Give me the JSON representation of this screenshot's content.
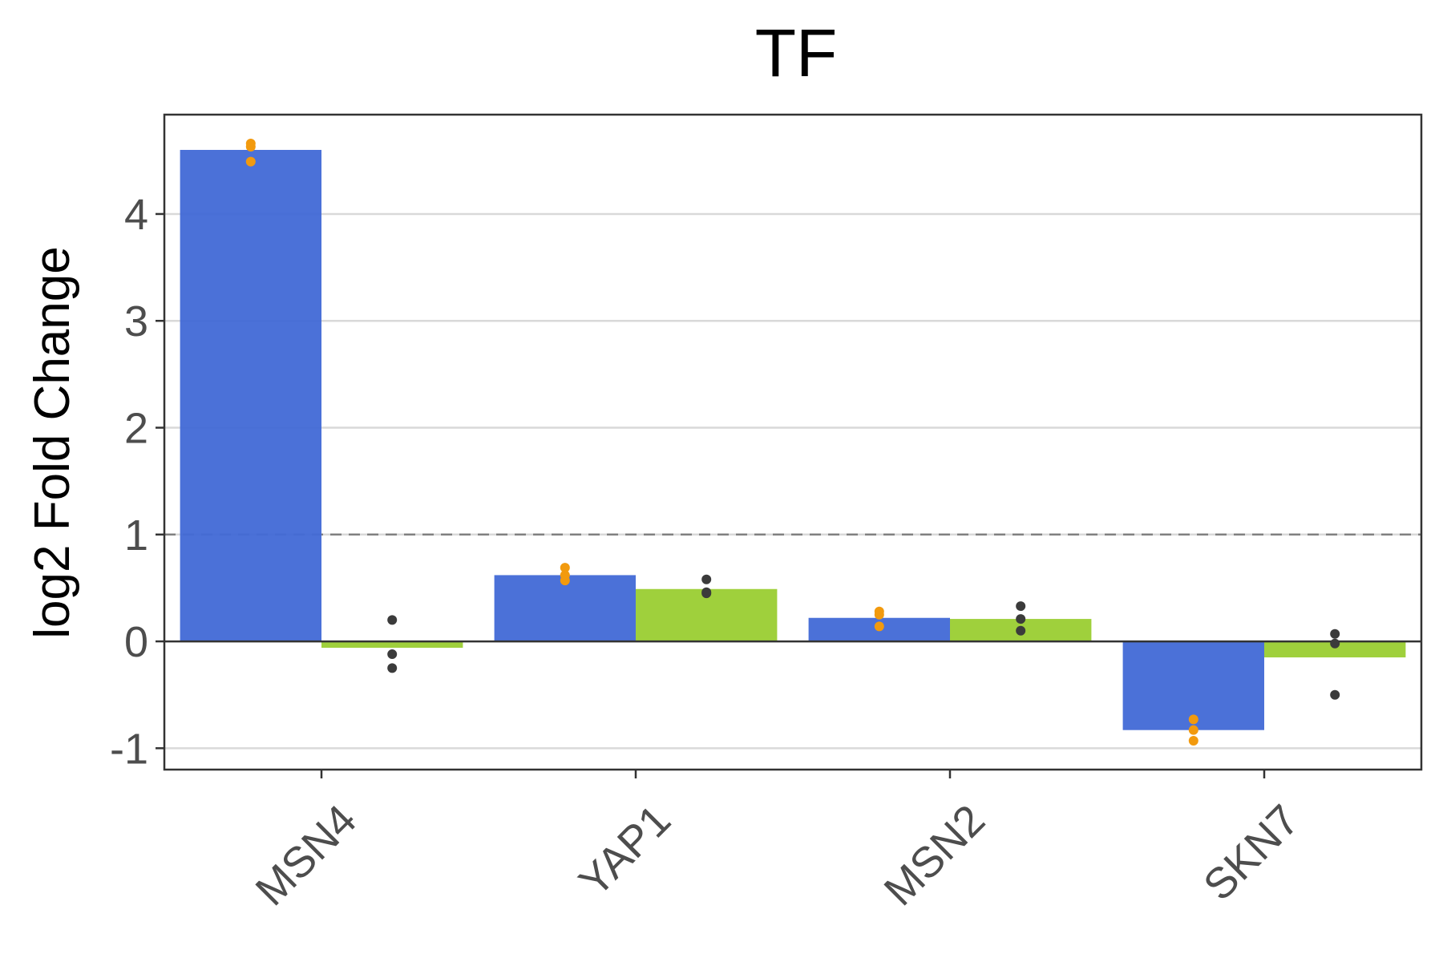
{
  "chart_data": {
    "type": "bar",
    "title": "TF",
    "xlabel": "",
    "ylabel": "log2 Fold Change",
    "categories": [
      "MSN4",
      "YAP1",
      "MSN2",
      "SKN7"
    ],
    "ylim": [
      -1.2,
      4.93
    ],
    "yticks": [
      -1,
      0,
      1,
      2,
      3,
      4
    ],
    "ytick_labels": [
      "-1",
      "0",
      "1",
      "2",
      "3",
      "4"
    ],
    "reference_line": {
      "y": 1,
      "style": "dashed",
      "color": "#808080"
    },
    "zero_line": {
      "y": 0,
      "color": "#333333"
    },
    "grid": "horizontal",
    "legend": "none",
    "series": [
      {
        "color": "#4169d6",
        "point_color": "#f29a0e",
        "values": [
          4.6,
          0.62,
          0.22,
          -0.83
        ],
        "points": [
          [
            4.49,
            4.63,
            4.66
          ],
          [
            0.57,
            0.62,
            0.69
          ],
          [
            0.14,
            0.25,
            0.28
          ],
          [
            -0.93,
            -0.83,
            -0.73
          ]
        ]
      },
      {
        "color": "#9acd32",
        "point_color": "#3b3b3b",
        "values": [
          -0.06,
          0.49,
          0.21,
          -0.15
        ],
        "points": [
          [
            -0.25,
            -0.12,
            0.2
          ],
          [
            0.45,
            0.46,
            0.58
          ],
          [
            0.1,
            0.21,
            0.33
          ],
          [
            -0.5,
            -0.02,
            0.07
          ]
        ]
      }
    ]
  }
}
